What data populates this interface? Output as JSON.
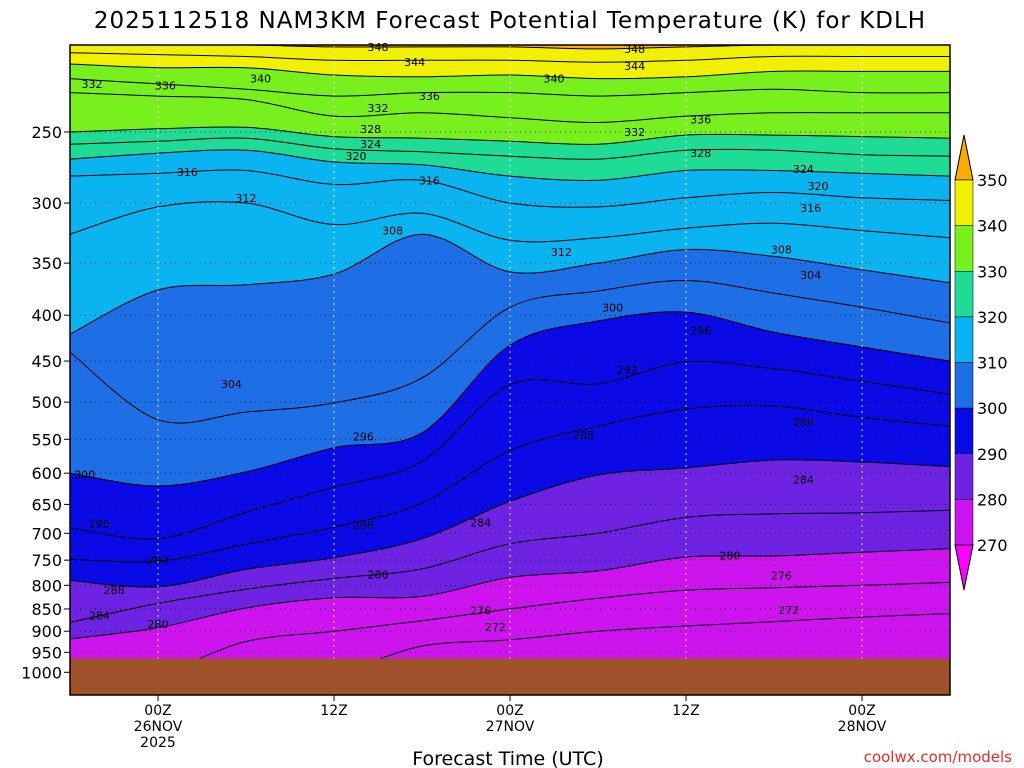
{
  "chart_data": {
    "type": "contour",
    "title": "2025112518 NAM3KM Forecast Potential Temperature (K) for KDLH",
    "xlabel": "Forecast Time (UTC)",
    "ylabel": "",
    "credit": "coolwx.com/models",
    "y_axis": {
      "scale": "pressure",
      "ticks": [
        250,
        300,
        350,
        400,
        450,
        500,
        550,
        600,
        650,
        700,
        750,
        800,
        850,
        900,
        950,
        1000
      ]
    },
    "x_ticks": [
      {
        "hours": 6,
        "lines": [
          "00Z",
          "26NOV",
          "2025"
        ]
      },
      {
        "hours": 18,
        "lines": [
          "12Z"
        ]
      },
      {
        "hours": 30,
        "lines": [
          "00Z",
          "27NOV"
        ]
      },
      {
        "hours": 42,
        "lines": [
          "12Z"
        ]
      },
      {
        "hours": 54,
        "lines": [
          "00Z",
          "28NOV"
        ]
      }
    ],
    "x_range_hours": [
      0,
      60
    ],
    "colorbar": {
      "levels": [
        270,
        280,
        290,
        300,
        310,
        320,
        330,
        340,
        350
      ],
      "colors": [
        "#ff00ff",
        "#ce14ee",
        "#6e22e2",
        "#0a0ae6",
        "#1e6ee6",
        "#0ab4f0",
        "#1edc96",
        "#78f01e",
        "#f0f000",
        "#ffaa00"
      ]
    },
    "contour_interval": 4,
    "ground_color": "#9f522a",
    "profiles": [
      {
        "t": 0,
        "levels": [
          [
            280,
            918
          ],
          [
            284,
            880
          ],
          [
            288,
            790
          ],
          [
            292,
            748
          ],
          [
            296,
            690
          ],
          [
            300,
            600
          ],
          [
            304,
            440
          ],
          [
            308,
            420
          ],
          [
            312,
            325
          ],
          [
            316,
            280
          ],
          [
            320,
            268
          ],
          [
            324,
            258
          ],
          [
            328,
            250
          ],
          [
            332,
            226
          ],
          [
            336,
            218
          ],
          [
            340,
            210
          ],
          [
            344,
            204
          ],
          [
            348,
            200
          ]
        ]
      },
      {
        "t": 6,
        "levels": [
          [
            280,
            892
          ],
          [
            284,
            838
          ],
          [
            288,
            803
          ],
          [
            292,
            752
          ],
          [
            296,
            710
          ],
          [
            300,
            620
          ],
          [
            304,
            523
          ],
          [
            308,
            375
          ],
          [
            312,
            303
          ],
          [
            316,
            278
          ],
          [
            320,
            264
          ],
          [
            324,
            256
          ],
          [
            328,
            248
          ],
          [
            332,
            228
          ],
          [
            336,
            221
          ],
          [
            340,
            212
          ],
          [
            344,
            205
          ],
          [
            348,
            200
          ]
        ]
      },
      {
        "t": 12,
        "levels": [
          [
            276,
            924
          ],
          [
            280,
            848
          ],
          [
            284,
            808
          ],
          [
            288,
            768
          ],
          [
            292,
            720
          ],
          [
            296,
            663
          ],
          [
            300,
            598
          ],
          [
            304,
            513
          ],
          [
            308,
            370
          ],
          [
            312,
            300
          ],
          [
            316,
            276
          ],
          [
            320,
            262
          ],
          [
            324,
            254
          ],
          [
            328,
            247
          ],
          [
            332,
            230
          ],
          [
            336,
            224
          ],
          [
            340,
            212
          ],
          [
            344,
            206
          ],
          [
            348,
            200
          ]
        ]
      },
      {
        "t": 18,
        "levels": [
          [
            276,
            900
          ],
          [
            280,
            826
          ],
          [
            284,
            786
          ],
          [
            288,
            745
          ],
          [
            292,
            689
          ],
          [
            296,
            622
          ],
          [
            300,
            562
          ],
          [
            304,
            501
          ],
          [
            308,
            360
          ],
          [
            312,
            317
          ],
          [
            316,
            286
          ],
          [
            320,
            270
          ],
          [
            324,
            261
          ],
          [
            328,
            253
          ],
          [
            332,
            240
          ],
          [
            336,
            228
          ],
          [
            340,
            216
          ],
          [
            344,
            208
          ],
          [
            348,
            201
          ]
        ]
      },
      {
        "t": 24,
        "levels": [
          [
            272,
            935
          ],
          [
            276,
            876
          ],
          [
            280,
            823
          ],
          [
            284,
            767
          ],
          [
            288,
            710
          ],
          [
            292,
            648
          ],
          [
            296,
            582
          ],
          [
            300,
            541
          ],
          [
            304,
            470
          ],
          [
            308,
            325
          ],
          [
            312,
            308
          ],
          [
            316,
            283
          ],
          [
            320,
            272
          ],
          [
            324,
            263
          ],
          [
            328,
            254
          ],
          [
            332,
            238
          ],
          [
            336,
            226
          ],
          [
            340,
            217
          ],
          [
            344,
            208
          ],
          [
            348,
            201
          ]
        ]
      },
      {
        "t": 30,
        "levels": [
          [
            272,
            920
          ],
          [
            276,
            850
          ],
          [
            280,
            784
          ],
          [
            284,
            719
          ],
          [
            288,
            645
          ],
          [
            292,
            566
          ],
          [
            296,
            478
          ],
          [
            300,
            432
          ],
          [
            304,
            392
          ],
          [
            308,
            358
          ],
          [
            312,
            330
          ],
          [
            316,
            300
          ],
          [
            320,
            280
          ],
          [
            324,
            266
          ],
          [
            328,
            256
          ],
          [
            332,
            241
          ],
          [
            336,
            226
          ],
          [
            340,
            216
          ],
          [
            344,
            208
          ],
          [
            348,
            201
          ]
        ]
      },
      {
        "t": 36,
        "levels": [
          [
            272,
            900
          ],
          [
            276,
            827
          ],
          [
            280,
            771
          ],
          [
            284,
            700
          ],
          [
            288,
            603
          ],
          [
            292,
            532
          ],
          [
            296,
            477
          ],
          [
            300,
            406
          ],
          [
            304,
            376
          ],
          [
            308,
            350
          ],
          [
            312,
            328
          ],
          [
            316,
            303
          ],
          [
            320,
            283
          ],
          [
            324,
            268
          ],
          [
            328,
            258
          ],
          [
            332,
            244
          ],
          [
            336,
            228
          ],
          [
            340,
            218
          ],
          [
            344,
            209
          ],
          [
            348,
            202
          ]
        ]
      },
      {
        "t": 42,
        "levels": [
          [
            272,
            888
          ],
          [
            276,
            810
          ],
          [
            280,
            744
          ],
          [
            284,
            672
          ],
          [
            288,
            592
          ],
          [
            292,
            509
          ],
          [
            296,
            451
          ],
          [
            300,
            397
          ],
          [
            304,
            366
          ],
          [
            308,
            338
          ],
          [
            312,
            320
          ],
          [
            316,
            296
          ],
          [
            320,
            276
          ],
          [
            324,
            262
          ],
          [
            328,
            252
          ],
          [
            332,
            240
          ],
          [
            336,
            226
          ],
          [
            340,
            217
          ],
          [
            344,
            208
          ],
          [
            348,
            201
          ]
        ]
      },
      {
        "t": 48,
        "levels": [
          [
            272,
            878
          ],
          [
            276,
            805
          ],
          [
            280,
            742
          ],
          [
            284,
            666
          ],
          [
            288,
            580
          ],
          [
            292,
            505
          ],
          [
            296,
            459
          ],
          [
            300,
            418
          ],
          [
            304,
            378
          ],
          [
            308,
            344
          ],
          [
            312,
            316
          ],
          [
            316,
            292
          ],
          [
            320,
            276
          ],
          [
            324,
            262
          ],
          [
            328,
            252
          ],
          [
            332,
            238
          ],
          [
            336,
            224
          ],
          [
            340,
            214
          ],
          [
            344,
            206
          ],
          [
            348,
            200
          ]
        ]
      },
      {
        "t": 54,
        "levels": [
          [
            272,
            868
          ],
          [
            276,
            800
          ],
          [
            280,
            735
          ],
          [
            284,
            664
          ],
          [
            288,
            583
          ],
          [
            292,
            520
          ],
          [
            296,
            474
          ],
          [
            300,
            434
          ],
          [
            304,
            392
          ],
          [
            308,
            356
          ],
          [
            312,
            322
          ],
          [
            316,
            296
          ],
          [
            320,
            278
          ],
          [
            324,
            265
          ],
          [
            328,
            253
          ],
          [
            332,
            238
          ],
          [
            336,
            226
          ],
          [
            340,
            214
          ],
          [
            344,
            206
          ],
          [
            348,
            200
          ]
        ]
      },
      {
        "t": 60,
        "levels": [
          [
            272,
            860
          ],
          [
            276,
            794
          ],
          [
            280,
            728
          ],
          [
            284,
            660
          ],
          [
            288,
            590
          ],
          [
            292,
            532
          ],
          [
            296,
            490
          ],
          [
            300,
            450
          ],
          [
            304,
            408
          ],
          [
            308,
            368
          ],
          [
            312,
            328
          ],
          [
            316,
            298
          ],
          [
            320,
            280
          ],
          [
            324,
            266
          ],
          [
            328,
            254
          ],
          [
            332,
            238
          ],
          [
            336,
            226
          ],
          [
            340,
            214
          ],
          [
            344,
            206
          ],
          [
            348,
            200
          ]
        ]
      }
    ],
    "contour_labels": [
      {
        "value": "348",
        "t": 38.5,
        "p": 202
      },
      {
        "value": "348",
        "t": 21.0,
        "p": 201
      },
      {
        "value": "344",
        "t": 23.5,
        "p": 209
      },
      {
        "value": "344",
        "t": 38.5,
        "p": 211
      },
      {
        "value": "340",
        "t": 13.0,
        "p": 218
      },
      {
        "value": "340",
        "t": 33.0,
        "p": 218
      },
      {
        "value": "336",
        "t": 6.5,
        "p": 222
      },
      {
        "value": "336",
        "t": 24.5,
        "p": 228
      },
      {
        "value": "336",
        "t": 43.0,
        "p": 242
      },
      {
        "value": "332",
        "t": 1.5,
        "p": 221
      },
      {
        "value": "332",
        "t": 21.0,
        "p": 235
      },
      {
        "value": "332",
        "t": 38.5,
        "p": 250
      },
      {
        "value": "328",
        "t": 20.5,
        "p": 248
      },
      {
        "value": "328",
        "t": 43.0,
        "p": 264
      },
      {
        "value": "324",
        "t": 20.5,
        "p": 258
      },
      {
        "value": "324",
        "t": 50.0,
        "p": 275
      },
      {
        "value": "320",
        "t": 19.5,
        "p": 266
      },
      {
        "value": "320",
        "t": 51.0,
        "p": 287
      },
      {
        "value": "316",
        "t": 8.0,
        "p": 277
      },
      {
        "value": "316",
        "t": 24.5,
        "p": 283
      },
      {
        "value": "316",
        "t": 50.5,
        "p": 304
      },
      {
        "value": "312",
        "t": 12.0,
        "p": 296
      },
      {
        "value": "312",
        "t": 33.5,
        "p": 340
      },
      {
        "value": "308",
        "t": 22.0,
        "p": 322
      },
      {
        "value": "308",
        "t": 48.5,
        "p": 338
      },
      {
        "value": "304",
        "t": 11.0,
        "p": 477
      },
      {
        "value": "304",
        "t": 50.5,
        "p": 361
      },
      {
        "value": "300",
        "t": 1.0,
        "p": 602
      },
      {
        "value": "300",
        "t": 37.0,
        "p": 392
      },
      {
        "value": "296",
        "t": 2.0,
        "p": 683
      },
      {
        "value": "296",
        "t": 20.0,
        "p": 546
      },
      {
        "value": "296",
        "t": 43.0,
        "p": 416
      },
      {
        "value": "292",
        "t": 6.0,
        "p": 750
      },
      {
        "value": "292",
        "t": 38.0,
        "p": 460
      },
      {
        "value": "288",
        "t": 3.0,
        "p": 810
      },
      {
        "value": "288",
        "t": 20.0,
        "p": 685
      },
      {
        "value": "288",
        "t": 35.0,
        "p": 544
      },
      {
        "value": "288",
        "t": 50.0,
        "p": 526
      },
      {
        "value": "284",
        "t": 2.0,
        "p": 864
      },
      {
        "value": "284",
        "t": 28.0,
        "p": 681
      },
      {
        "value": "284",
        "t": 50.0,
        "p": 610
      },
      {
        "value": "280",
        "t": 6.0,
        "p": 884
      },
      {
        "value": "280",
        "t": 21.0,
        "p": 778
      },
      {
        "value": "280",
        "t": 45.0,
        "p": 741
      },
      {
        "value": "276",
        "t": 28.0,
        "p": 853
      },
      {
        "value": "276",
        "t": 48.5,
        "p": 780
      },
      {
        "value": "272",
        "t": 29.0,
        "p": 890
      },
      {
        "value": "272",
        "t": 49.0,
        "p": 852
      }
    ]
  }
}
